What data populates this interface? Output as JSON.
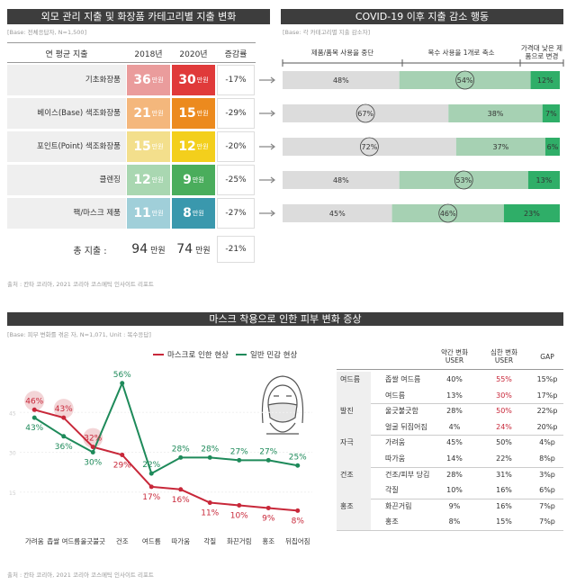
{
  "spending": {
    "title": "외모 관리 지출 및 화장품 카테고리별 지출 변화",
    "base": "[Base: 전체응답자, N=1,500]",
    "headers": [
      "연 평균 지출",
      "2018년",
      "2020년",
      "증감률"
    ],
    "unit": "만원",
    "colors_2018": [
      "#ea9c9c",
      "#f4b77c",
      "#f3df8c",
      "#a9d7b1",
      "#a0cfd9"
    ],
    "colors_2020": [
      "#e03a3a",
      "#ec8a1e",
      "#f3cf1c",
      "#4aad5c",
      "#3a98ad"
    ],
    "rows": [
      {
        "category": "기초화장품",
        "y2018": 36,
        "y2020": 30,
        "change": "-17%"
      },
      {
        "category": "베이스(Base) 색조화장품",
        "y2018": 21,
        "y2020": 15,
        "change": "-29%"
      },
      {
        "category": "포인트(Point) 색조화장품",
        "y2018": 15,
        "y2020": 12,
        "change": "-20%"
      },
      {
        "category": "클렌징",
        "y2018": 12,
        "y2020": 9,
        "change": "-25%"
      },
      {
        "category": "팩/마스크 제품",
        "y2018": 11,
        "y2020": 8,
        "change": "-27%"
      }
    ],
    "total": {
      "label": "총 지출 :",
      "y2018": 94,
      "y2020": 74,
      "change": "-21%"
    }
  },
  "chart_data": [
    {
      "type": "bar",
      "orientation": "horizontal",
      "stacked": true,
      "title": "COVID-19 이후 지출 감소 행동",
      "subtitle": "[Base: 각 카테고리별 지출 감소자]",
      "series": [
        {
          "name": "제품/품목 사용을 중단",
          "color": "#dcdcdc",
          "values": [
            48,
            67,
            72,
            48,
            45
          ],
          "value_labels": [
            "48%",
            "67%",
            "72%",
            "48%",
            "45%"
          ]
        },
        {
          "name": "복수 사용을 1개로 축소",
          "color": "#a6d1b3",
          "values": [
            54,
            38,
            37,
            53,
            46
          ],
          "value_labels": [
            "54%",
            "38%",
            "37%",
            "53%",
            "46%"
          ]
        },
        {
          "name": "가격대 낮은 제품으로 변경",
          "color": "#2fae68",
          "values": [
            12,
            7,
            6,
            13,
            23
          ],
          "value_labels": [
            "12%",
            "7%",
            "6%",
            "13%",
            "23%"
          ]
        }
      ]
    },
    {
      "type": "line",
      "title": "마스크 착용으로 인한 피부 변화 증상",
      "subtitle": "[Base: 피부 변화를 겪은 자, N=1,071, Unit : 복수응답]",
      "categories": [
        "가려움",
        "좁쌀 여드름",
        "울긋불긋",
        "건조",
        "여드름",
        "따가움",
        "각질",
        "화끈거림",
        "홍조",
        "뒤집어짐"
      ],
      "series": [
        {
          "name": "마스크로 인한 현상",
          "color": "#c8283a",
          "values": [
            46,
            43,
            32,
            29,
            17,
            16,
            11,
            10,
            9,
            8
          ],
          "value_labels": [
            "46%",
            "43%",
            "32%",
            "29%",
            "17%",
            "16%",
            "11%",
            "10%",
            "9%",
            "8%"
          ]
        },
        {
          "name": "일반 민감 현상",
          "color": "#1e8a5a",
          "values": [
            43,
            36,
            30,
            56,
            22,
            28,
            28,
            27,
            27,
            25
          ],
          "value_labels": [
            "43%",
            "36%",
            "30%",
            "56%",
            "22%",
            "28%",
            "28%",
            "27%",
            "27%",
            "25%"
          ]
        }
      ],
      "ylim": [
        0,
        60
      ],
      "yticks": [
        15,
        30,
        45
      ],
      "grid": true,
      "legend": "top"
    }
  ],
  "symptom_table": {
    "headers": [
      "약간 변화 USER",
      "심한 변화 USER",
      "GAP"
    ],
    "highlight_color": "#c8283a",
    "groups": [
      {
        "name": "여드름",
        "rows": [
          [
            "좁쌀 여드름",
            "40%",
            "55%",
            "15%p"
          ],
          [
            "여드름",
            "13%",
            "30%",
            "17%p"
          ]
        ]
      },
      {
        "name": "발진",
        "rows": [
          [
            "울긋불긋함",
            "28%",
            "50%",
            "22%p"
          ],
          [
            "얼굴 뒤집어짐",
            "4%",
            "24%",
            "20%p"
          ]
        ]
      },
      {
        "name": "자극",
        "rows": [
          [
            "가려움",
            "45%",
            "50%",
            "4%p"
          ],
          [
            "따가움",
            "14%",
            "22%",
            "8%p"
          ]
        ]
      },
      {
        "name": "건조",
        "rows": [
          [
            "건조/피부 당김",
            "28%",
            "31%",
            "3%p"
          ],
          [
            "각질",
            "10%",
            "16%",
            "6%p"
          ]
        ]
      },
      {
        "name": "홍조",
        "rows": [
          [
            "화끈거림",
            "9%",
            "16%",
            "7%p"
          ],
          [
            "홍조",
            "8%",
            "15%",
            "7%p"
          ]
        ]
      }
    ]
  },
  "footnotes": [
    "출처 : 칸타 코리아, 2021 코리아 코스메틱 인사이트 리포트",
    "출처 : 칸타 코리아, 2021 코리아 코스메틱 인사이트 리포트"
  ]
}
